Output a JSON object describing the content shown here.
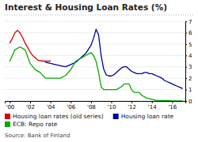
{
  "chart_data": {
    "type": "line",
    "title": "Interest & Housing Loan Rates (%)",
    "source": "Source: Bank of Finland",
    "xlim": [
      1999.5,
      2017.3
    ],
    "xticks": [
      {
        "value": 2000,
        "label": "'00"
      },
      {
        "value": 2002,
        "label": "'02"
      },
      {
        "value": 2004,
        "label": "'04"
      },
      {
        "value": 2006,
        "label": "'06"
      },
      {
        "value": 2008,
        "label": "'08"
      },
      {
        "value": 2010,
        "label": "'10"
      },
      {
        "value": 2012,
        "label": "'12"
      },
      {
        "value": 2014,
        "label": "'14"
      },
      {
        "value": 2016,
        "label": "'16"
      }
    ],
    "ylim": [
      0,
      7
    ],
    "yticks": [
      0,
      1,
      2,
      3,
      4,
      5,
      6,
      7
    ],
    "grid": true,
    "legend": "bottom",
    "series": [
      {
        "name": "Housing loan rates (old series)",
        "color": "#dd0000",
        "x": [
          2000,
          2000.25,
          2000.5,
          2000.75,
          2001,
          2001.25,
          2001.5,
          2001.75,
          2002,
          2002.25,
          2002.5,
          2002.75,
          2003,
          2003.25,
          2003.5,
          2003.75,
          2004
        ],
        "values": [
          5.1,
          5.5,
          6.0,
          6.2,
          6.0,
          5.6,
          5.1,
          4.7,
          4.3,
          4.0,
          3.8,
          3.6,
          3.55,
          3.5,
          3.5,
          3.5,
          3.5
        ]
      },
      {
        "name": "Housing loan rate",
        "color": "#000099",
        "x": [
          2003.5,
          2004,
          2004.5,
          2005,
          2005.5,
          2006,
          2006.5,
          2007,
          2007.5,
          2008,
          2008.25,
          2008.5,
          2008.75,
          2009,
          2009.25,
          2009.5,
          2009.75,
          2010,
          2010.25,
          2010.5,
          2010.75,
          2011,
          2011.25,
          2011.5,
          2011.75,
          2012,
          2012.25,
          2012.5,
          2012.75,
          2013,
          2013.25,
          2013.5,
          2013.75,
          2014,
          2014.25,
          2014.5,
          2014.75,
          2015,
          2015.25,
          2015.5,
          2015.75,
          2016,
          2016.25,
          2016.5,
          2016.75,
          2017
        ],
        "values": [
          3.4,
          3.3,
          3.2,
          3.1,
          3.0,
          3.2,
          3.4,
          3.8,
          4.2,
          4.9,
          5.5,
          6.3,
          5.8,
          4.0,
          2.8,
          2.3,
          2.2,
          2.2,
          2.3,
          2.5,
          2.7,
          2.9,
          3.0,
          3.0,
          2.8,
          2.6,
          2.5,
          2.4,
          2.4,
          2.4,
          2.5,
          2.5,
          2.4,
          2.4,
          2.3,
          2.2,
          2.1,
          2.0,
          1.8,
          1.7,
          1.6,
          1.5,
          1.4,
          1.3,
          1.2,
          1.1
        ]
      },
      {
        "name": "ECB: Repo rate",
        "color": "#00aa00",
        "x": [
          2000,
          2000.5,
          2001,
          2001.5,
          2002,
          2002.5,
          2003,
          2003.5,
          2004,
          2004.5,
          2005,
          2005.5,
          2006,
          2006.5,
          2007,
          2007.5,
          2008,
          2008.25,
          2008.5,
          2008.75,
          2009,
          2009.25,
          2009.5,
          2009.75,
          2010,
          2010.5,
          2011,
          2011.25,
          2011.5,
          2011.75,
          2012,
          2012.25,
          2012.5,
          2012.75,
          2013,
          2013.5,
          2014,
          2014.5,
          2015,
          2015.5,
          2016,
          2016.5,
          2017
        ],
        "values": [
          3.5,
          4.5,
          4.75,
          4.5,
          3.3,
          2.75,
          2.5,
          2.0,
          2.0,
          2.0,
          2.0,
          2.25,
          2.75,
          3.5,
          3.75,
          4.0,
          4.25,
          4.0,
          3.5,
          2.5,
          1.25,
          1.0,
          1.0,
          1.0,
          1.0,
          1.0,
          1.25,
          1.5,
          1.5,
          1.5,
          1.0,
          0.75,
          0.75,
          0.75,
          0.5,
          0.25,
          0.15,
          0.05,
          0.05,
          0.05,
          0.0,
          0.0,
          0.0
        ]
      }
    ]
  }
}
